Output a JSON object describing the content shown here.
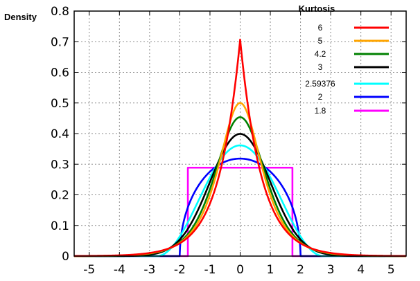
{
  "chart_data": {
    "type": "line",
    "title": "",
    "xlabel": "",
    "ylabel": "Density",
    "xlim": [
      -5.5,
      5.5
    ],
    "ylim": [
      0,
      0.8
    ],
    "x_ticks": [
      "-5",
      "-4",
      "-3",
      "-2",
      "-1",
      "0",
      "1",
      "2",
      "3",
      "4",
      "5"
    ],
    "y_ticks": [
      "0",
      "0.1",
      "0.2",
      "0.3",
      "0.4",
      "0.5",
      "0.6",
      "0.7",
      "0.8"
    ],
    "grid": true,
    "legend": {
      "title": "Kurtosis",
      "position": "top-right"
    },
    "series": [
      {
        "name": "6",
        "color": "#ff0000",
        "family": "laplace",
        "peak": 0.7071
      },
      {
        "name": "5",
        "color": "#ffa500",
        "family": "sech",
        "peak": 0.5
      },
      {
        "name": "4.2",
        "color": "#008000",
        "family": "logistic",
        "peak": 0.4534
      },
      {
        "name": "3",
        "color": "#000000",
        "family": "normal",
        "peak": 0.3989
      },
      {
        "name": "2.59376",
        "color": "#00ffff",
        "family": "raised-cosine",
        "peak": 0.3615
      },
      {
        "name": "2",
        "color": "#0000ff",
        "family": "wigner",
        "peak": 0.3183
      },
      {
        "name": "1.8",
        "color": "#ff00ff",
        "family": "uniform",
        "peak": 0.2887,
        "range": [
          -1.732,
          1.732
        ]
      }
    ]
  }
}
